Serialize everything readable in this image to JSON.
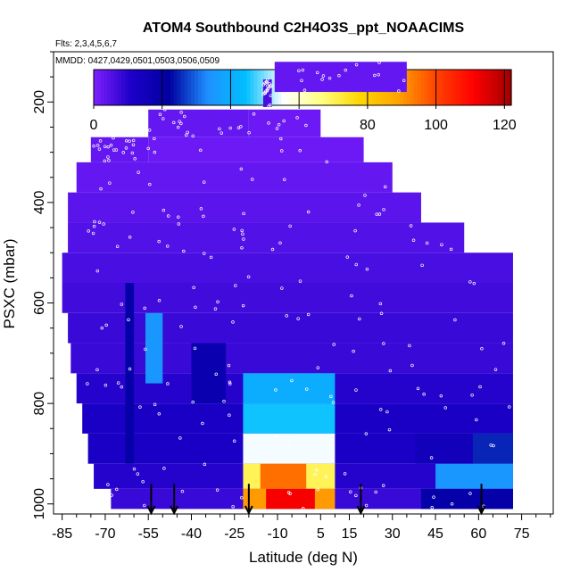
{
  "chart_data": {
    "type": "heatmap",
    "title": "ATOM4 Southbound C2H4O3S_ppt_NOAACIMS",
    "flights_label": "Flts: 2,3,4,5,6,7",
    "dates_label": "MMDD: 0427,0429,0501,0503,0506,0509",
    "xlabel": "Latitude (deg N)",
    "ylabel": "PSXC (mbar)",
    "xlim": [
      -88,
      86
    ],
    "ylim": [
      1020,
      100
    ],
    "x_ticks": [
      -85,
      -70,
      -55,
      -40,
      -25,
      -10,
      5,
      15,
      30,
      45,
      60,
      75
    ],
    "y_ticks": [
      200,
      400,
      600,
      800,
      1000
    ],
    "colorbar": {
      "min": 0,
      "max": 122,
      "ticks": [
        0,
        20,
        40,
        60,
        80,
        100,
        120
      ],
      "colors": [
        "#7f1fff",
        "#1c00c8",
        "#0000a0",
        "#1e90ff",
        "#00bfff",
        "#ffffff",
        "#ffff80",
        "#ffd700",
        "#ffa500",
        "#ff4500",
        "#ff0000",
        "#a00000"
      ]
    },
    "arrow_latitudes": [
      -54,
      -46,
      -20,
      19,
      61
    ],
    "regions": [
      {
        "lat": [
          -11,
          35
        ],
        "p": [
          120,
          180
        ],
        "value": 3
      },
      {
        "lat": [
          -15,
          -12
        ],
        "p": [
          155,
          210
        ],
        "value": 6
      },
      {
        "lat": [
          -55,
          -20
        ],
        "p": [
          215,
          270
        ],
        "value": 3
      },
      {
        "lat": [
          -20,
          5
        ],
        "p": [
          215,
          270
        ],
        "value": 2
      },
      {
        "lat": [
          -75,
          -55
        ],
        "p": [
          270,
          320
        ],
        "value": 3
      },
      {
        "lat": [
          -55,
          20
        ],
        "p": [
          270,
          320
        ],
        "value": 2
      },
      {
        "lat": [
          -80,
          30
        ],
        "p": [
          320,
          380
        ],
        "value": 3
      },
      {
        "lat": [
          -83,
          40
        ],
        "p": [
          380,
          440
        ],
        "value": 4
      },
      {
        "lat": [
          -83,
          55
        ],
        "p": [
          440,
          500
        ],
        "value": 5
      },
      {
        "lat": [
          -85,
          72
        ],
        "p": [
          500,
          560
        ],
        "value": 6
      },
      {
        "lat": [
          -85,
          72
        ],
        "p": [
          560,
          620
        ],
        "value": 7
      },
      {
        "lat": [
          -83,
          72
        ],
        "p": [
          620,
          680
        ],
        "value": 8
      },
      {
        "lat": [
          -82,
          72
        ],
        "p": [
          680,
          740
        ],
        "value": 8
      },
      {
        "lat": [
          -80,
          72
        ],
        "p": [
          740,
          800
        ],
        "value": 10
      },
      {
        "lat": [
          -78,
          72
        ],
        "p": [
          800,
          860
        ],
        "value": 12
      },
      {
        "lat": [
          -76,
          72
        ],
        "p": [
          860,
          920
        ],
        "value": 12
      },
      {
        "lat": [
          -74,
          72
        ],
        "p": [
          920,
          970
        ],
        "value": 10
      },
      {
        "lat": [
          -68,
          72
        ],
        "p": [
          970,
          1010
        ],
        "value": 8
      },
      {
        "lat": [
          -63,
          -60
        ],
        "p": [
          560,
          920
        ],
        "value": 20
      },
      {
        "lat": [
          -56,
          -50
        ],
        "p": [
          620,
          760
        ],
        "value": 35
      },
      {
        "lat": [
          -40,
          -28
        ],
        "p": [
          680,
          800
        ],
        "value": 18
      },
      {
        "lat": [
          -22,
          10
        ],
        "p": [
          740,
          800
        ],
        "value": 40
      },
      {
        "lat": [
          -22,
          10
        ],
        "p": [
          800,
          860
        ],
        "value": 45
      },
      {
        "lat": [
          -22,
          10
        ],
        "p": [
          860,
          920
        ],
        "value": 55
      },
      {
        "lat": [
          -22,
          10
        ],
        "p": [
          920,
          970
        ],
        "value": 70
      },
      {
        "lat": [
          -16,
          0
        ],
        "p": [
          920,
          970
        ],
        "value": 95
      },
      {
        "lat": [
          -22,
          10
        ],
        "p": [
          970,
          1010
        ],
        "value": 90
      },
      {
        "lat": [
          -14,
          3
        ],
        "p": [
          970,
          1010
        ],
        "value": 112
      },
      {
        "lat": [
          38,
          58
        ],
        "p": [
          860,
          920
        ],
        "value": 15
      },
      {
        "lat": [
          58,
          72
        ],
        "p": [
          860,
          920
        ],
        "value": 25
      },
      {
        "lat": [
          45,
          72
        ],
        "p": [
          920,
          970
        ],
        "value": 35
      },
      {
        "lat": [
          40,
          72
        ],
        "p": [
          970,
          1010
        ],
        "value": 20
      }
    ]
  }
}
